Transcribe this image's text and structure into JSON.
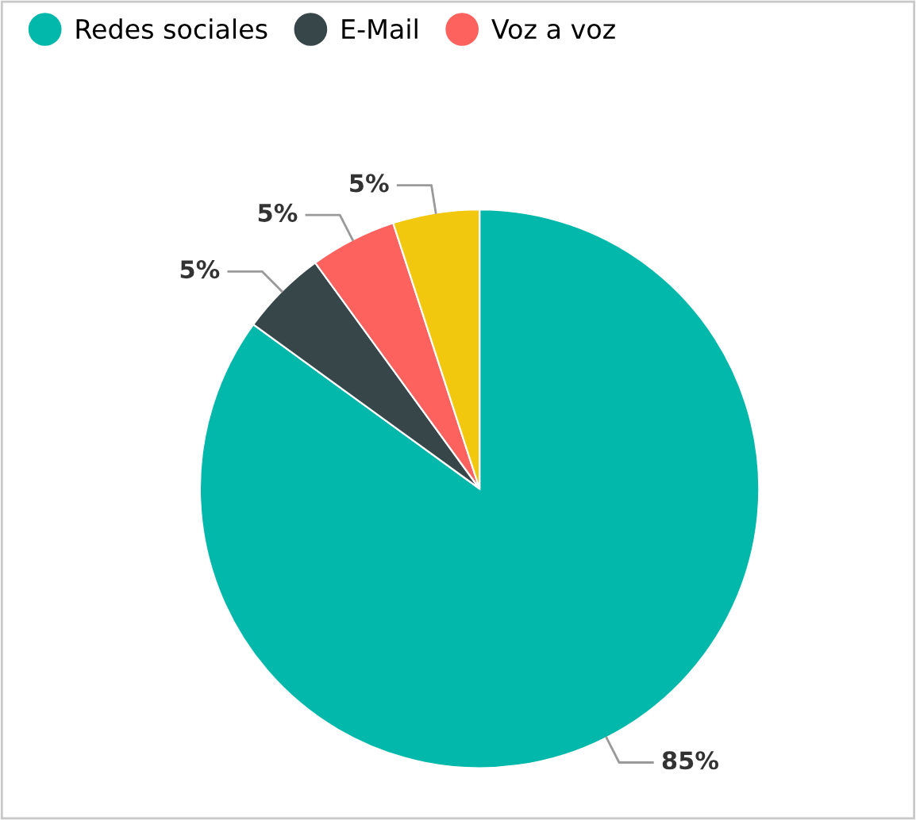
{
  "chart_data": {
    "type": "pie",
    "categories": [
      "Redes sociales",
      "E-Mail",
      "Voz a voz",
      null
    ],
    "values": [
      85,
      5,
      5,
      5
    ],
    "colors": [
      "#01b8aa",
      "#374649",
      "#fd625e",
      "#f2c80f"
    ],
    "value_labels": [
      "85%",
      "5%",
      "5%",
      "5%"
    ],
    "legend": "top left"
  }
}
